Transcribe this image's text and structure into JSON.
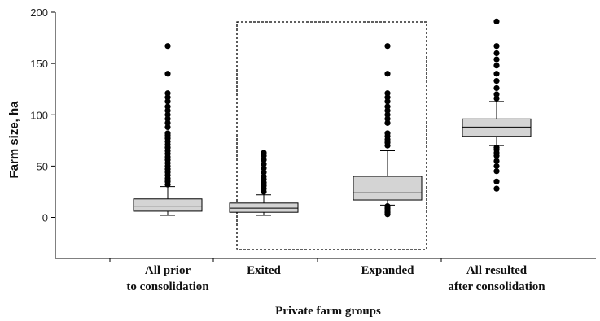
{
  "chart_data": {
    "type": "box",
    "ylabel": "Farm size, ha",
    "xlabel": "Private farm groups",
    "yticks": [
      0,
      50,
      100,
      150,
      200
    ],
    "ylim": [
      -40,
      200
    ],
    "grid": false,
    "highlight_box": {
      "label": "",
      "categories": [
        "Exited",
        "Expanded"
      ],
      "style": "dashed"
    },
    "categories": [
      {
        "label_lines": [
          "All prior",
          "to consolidation"
        ],
        "whisker_low": 2,
        "q1": 6,
        "median": 11,
        "q3": 18,
        "whisker_high": 30,
        "outliers": [
          32,
          35,
          38,
          41,
          44,
          47,
          50,
          53,
          56,
          59,
          62,
          65,
          68,
          71,
          74,
          77,
          80,
          82,
          88,
          92,
          96,
          100,
          104,
          108,
          113,
          117,
          121,
          140,
          167
        ]
      },
      {
        "label_lines": [
          "Exited"
        ],
        "whisker_low": 2,
        "q1": 5,
        "median": 9,
        "q3": 14,
        "whisker_high": 22,
        "outliers": [
          25,
          28,
          31,
          34,
          37,
          40,
          44,
          48,
          52,
          56,
          60,
          63
        ]
      },
      {
        "label_lines": [
          "Expanded"
        ],
        "whisker_low": 12,
        "q1": 17,
        "median": 24,
        "q3": 40,
        "whisker_high": 65,
        "outliers": [
          3,
          5,
          7,
          9,
          11,
          70,
          73,
          76,
          79,
          82,
          92,
          96,
          100,
          104,
          108,
          113,
          117,
          121,
          140,
          167
        ]
      },
      {
        "label_lines": [
          "All resulted",
          "after consolidation"
        ],
        "whisker_low": 70,
        "q1": 79,
        "median": 88,
        "q3": 96,
        "whisker_high": 113,
        "outliers": [
          28,
          35,
          45,
          50,
          55,
          60,
          63,
          66,
          68,
          116,
          120,
          126,
          133,
          140,
          148,
          154,
          160,
          167,
          191
        ]
      }
    ]
  }
}
